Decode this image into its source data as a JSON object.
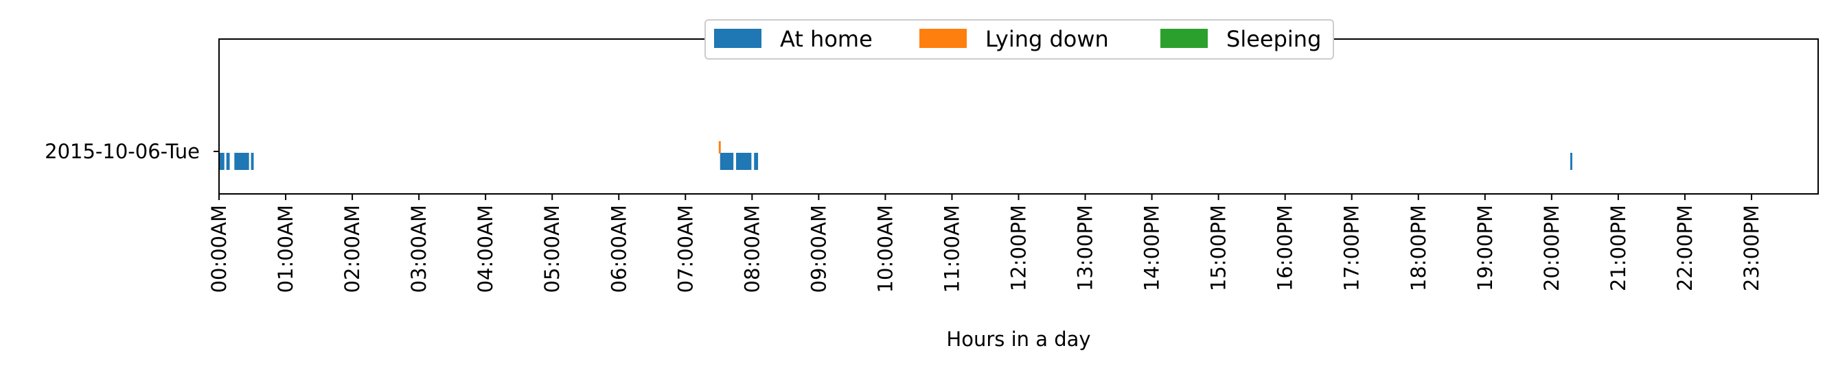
{
  "chart_data": {
    "type": "timeline",
    "title": "",
    "xlabel": "Hours in a day",
    "ylabel": "",
    "x_unit": "hours",
    "xlim": [
      0,
      24
    ],
    "x_ticks": [
      "00:00AM",
      "01:00AM",
      "02:00AM",
      "03:00AM",
      "04:00AM",
      "05:00AM",
      "06:00AM",
      "07:00AM",
      "08:00AM",
      "09:00AM",
      "10:00AM",
      "11:00AM",
      "12:00PM",
      "13:00PM",
      "14:00PM",
      "15:00PM",
      "16:00PM",
      "17:00PM",
      "18:00PM",
      "19:00PM",
      "20:00PM",
      "21:00PM",
      "22:00PM",
      "23:00PM"
    ],
    "categories": [
      "2015-10-06-Tue"
    ],
    "legend_position": "top-center",
    "grid": false,
    "series": [
      {
        "name": "At home",
        "color": "#1f77b4",
        "row": "2015-10-06-Tue",
        "level": "lower",
        "intervals": [
          [
            0.0,
            0.08
          ],
          [
            0.11,
            0.16
          ],
          [
            0.23,
            0.45
          ],
          [
            0.48,
            0.52
          ],
          [
            7.52,
            7.72
          ],
          [
            7.76,
            7.99
          ],
          [
            8.03,
            8.09
          ],
          [
            20.28,
            20.31
          ]
        ]
      },
      {
        "name": "Lying down",
        "color": "#ff7f0e",
        "row": "2015-10-06-Tue",
        "level": "upper",
        "intervals": [
          [
            7.5,
            7.53
          ]
        ]
      },
      {
        "name": "Sleeping",
        "color": "#2ca02c",
        "row": "2015-10-06-Tue",
        "level": "upper",
        "intervals": []
      }
    ]
  }
}
